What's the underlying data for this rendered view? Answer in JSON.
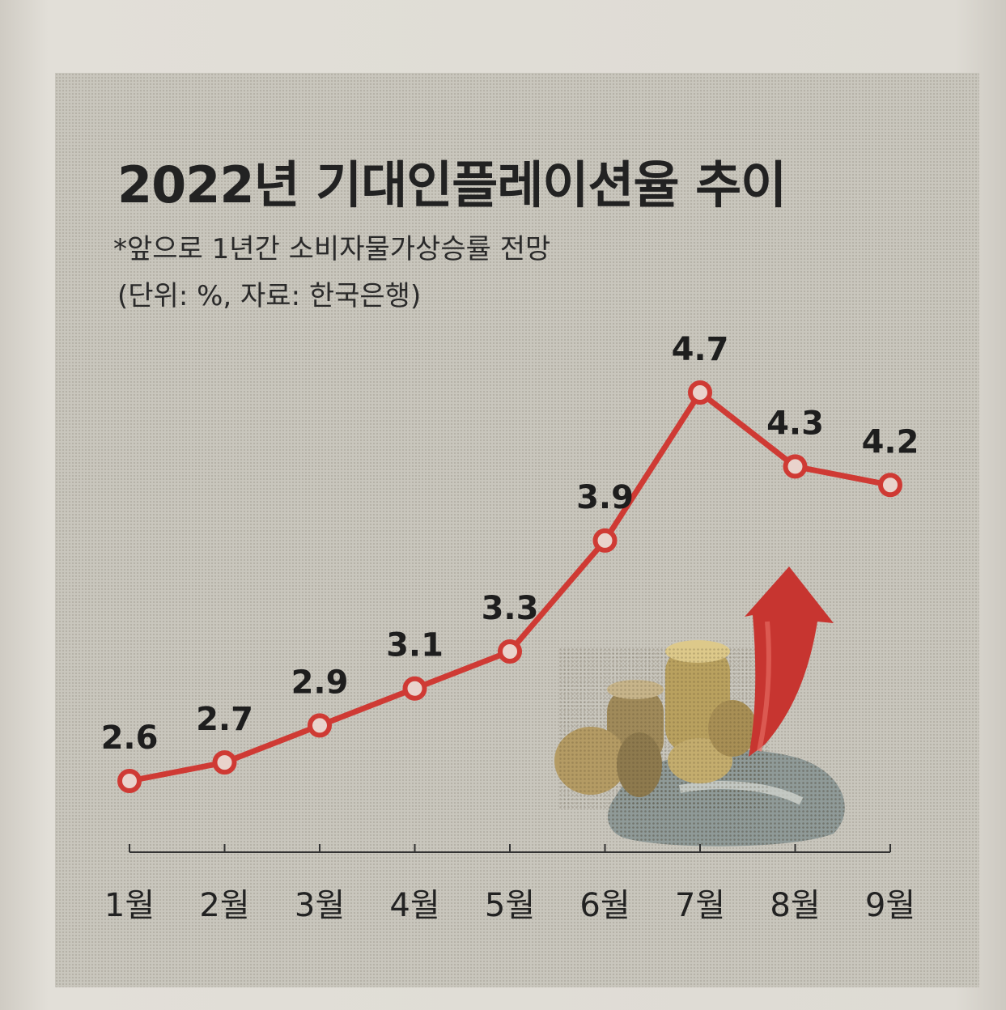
{
  "chart_data": {
    "type": "line",
    "title": "2022년 기대인플레이션율 추이",
    "subtitle": "*앞으로 1년간 소비자물가상승률 전망",
    "unit_note": "(단위: %, 자료: 한국은행)",
    "categories": [
      "1월",
      "2월",
      "3월",
      "4월",
      "5월",
      "6월",
      "7월",
      "8월",
      "9월"
    ],
    "values": [
      2.6,
      2.7,
      2.9,
      3.1,
      3.3,
      3.9,
      4.7,
      4.3,
      4.2
    ],
    "value_labels": [
      "2.6",
      "2.7",
      "2.9",
      "3.1",
      "3.3",
      "3.9",
      "4.7",
      "4.3",
      "4.2"
    ],
    "xlabel": "",
    "ylabel": "",
    "ylim": [
      2.6,
      4.7
    ],
    "grid": false,
    "legend": "none",
    "line_color": "#cf3a34",
    "marker_fill": "#e9d3cc"
  },
  "decoration": {
    "illustration": "coins-bag-red-up-arrow-icon",
    "arrow_color": "#c73530"
  }
}
